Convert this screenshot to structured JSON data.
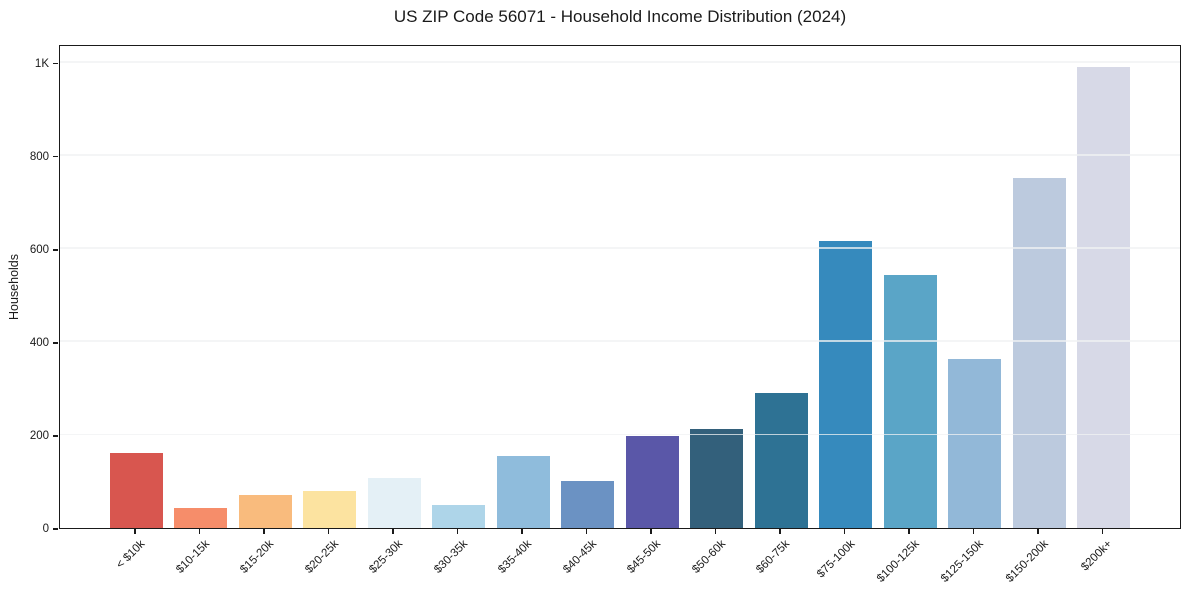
{
  "chart_data": {
    "type": "bar",
    "title": "US ZIP Code 56071 - Household Income Distribution (2024)",
    "xlabel": "",
    "ylabel": "Households",
    "categories": [
      "< $10k",
      "$10-15k",
      "$15-20k",
      "$20-25k",
      "$25-30k",
      "$30-35k",
      "$35-40k",
      "$40-45k",
      "$45-50k",
      "$50-60k",
      "$60-75k",
      "$75-100k",
      "$100-125k",
      "$125-150k",
      "$150-200k",
      "$200k+"
    ],
    "values": [
      162,
      43,
      71,
      80,
      107,
      50,
      155,
      100,
      197,
      212,
      290,
      616,
      544,
      363,
      753,
      990
    ],
    "bar_colors": [
      "#d8564f",
      "#f68d6a",
      "#f9bb7d",
      "#fce3a0",
      "#e4f0f6",
      "#aed5e9",
      "#8fbcdc",
      "#6b92c3",
      "#5a57a8",
      "#33607b",
      "#2e7294",
      "#368abd",
      "#5aa5c7",
      "#92b8d8",
      "#bccade",
      "#d7d9e7"
    ],
    "ylim": [
      0,
      1040
    ],
    "yticks": [
      {
        "value": 0,
        "label": "0"
      },
      {
        "value": 200,
        "label": "200"
      },
      {
        "value": 400,
        "label": "400"
      },
      {
        "value": 600,
        "label": "600"
      },
      {
        "value": 800,
        "label": "800"
      },
      {
        "value": 1000,
        "label": "1K"
      }
    ],
    "grid": "horizontal",
    "grid_color": "#f0f1f3",
    "axis_color": "#1a1a1a",
    "background_color": "#ffffff",
    "legend": "none"
  }
}
